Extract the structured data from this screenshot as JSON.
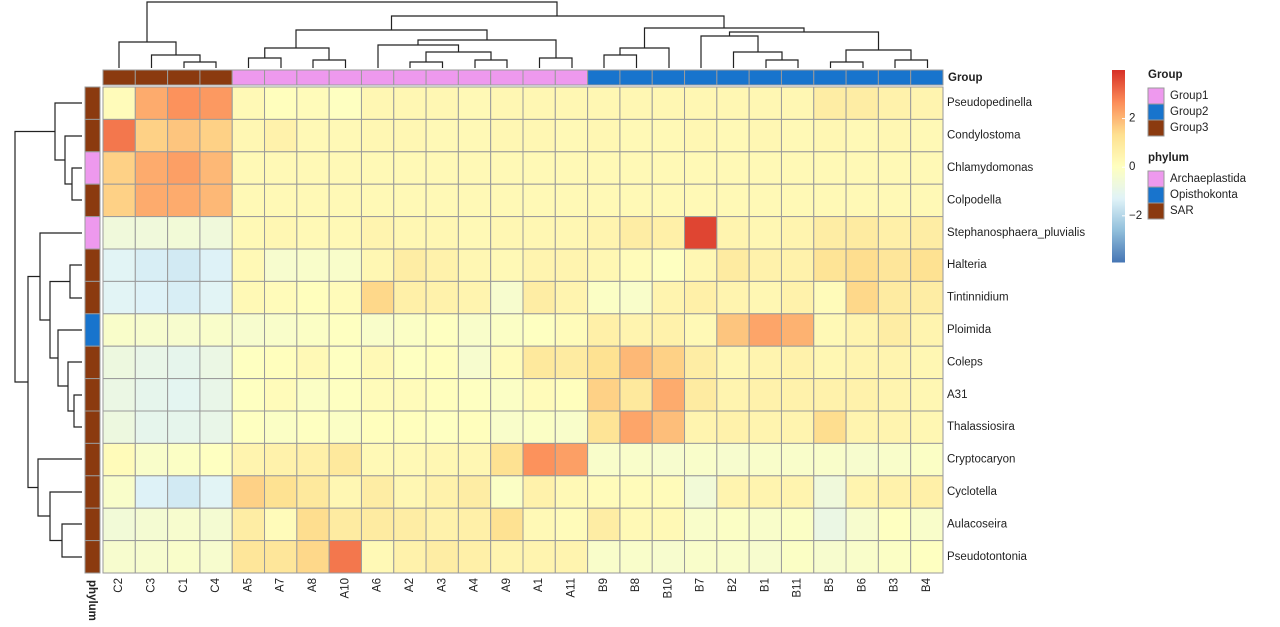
{
  "chart_data": {
    "type": "heatmap",
    "columns": [
      "C2",
      "C3",
      "C1",
      "C4",
      "A5",
      "A7",
      "A8",
      "A10",
      "A6",
      "A2",
      "A3",
      "A4",
      "A9",
      "A1",
      "A11",
      "B9",
      "B8",
      "B10",
      "B7",
      "B2",
      "B1",
      "B11",
      "B5",
      "B6",
      "B3",
      "B4"
    ],
    "rows": [
      "Pseudopedinella",
      "Condylostoma",
      "Chlamydomonas",
      "Colpodella",
      "Stephanosphaera_pluvialis",
      "Halteria",
      "Tintinnidium",
      "Ploimida",
      "Coleps",
      "A31",
      "Thalassiosira",
      "Cryptocaryon",
      "Cyclotella",
      "Aulacoseira",
      "Pseudotontonia"
    ],
    "values": [
      [
        0.2,
        2.2,
        2.6,
        2.5,
        0.3,
        0.1,
        0.2,
        0,
        0.4,
        0.4,
        0.4,
        0.3,
        0.4,
        0.4,
        0.4,
        0.4,
        0.4,
        0.4,
        0.4,
        0.4,
        0.4,
        0.4,
        0.8,
        0.8,
        0.6,
        0.5
      ],
      [
        3.0,
        1.6,
        1.8,
        1.6,
        0.4,
        0.6,
        0.3,
        0.3,
        0.4,
        0.4,
        0.3,
        0.3,
        0.4,
        0.4,
        0.3,
        0.4,
        0.3,
        0.3,
        0.4,
        0.3,
        0.4,
        0.3,
        0.4,
        0.3,
        0.4,
        0.3
      ],
      [
        1.6,
        2.2,
        2.4,
        2.0,
        0.3,
        0.3,
        0.3,
        0.3,
        0.3,
        0.3,
        0.3,
        0.3,
        0.3,
        0.3,
        0.3,
        0.3,
        0.3,
        0.3,
        0.3,
        0.3,
        0.3,
        0.3,
        0.3,
        0.3,
        0.3,
        0.3
      ],
      [
        1.6,
        2.2,
        2.2,
        2.0,
        0.3,
        0.3,
        0.3,
        0.3,
        0.3,
        0.3,
        0.3,
        0.3,
        0.3,
        0.3,
        0.3,
        0.3,
        0.3,
        0.3,
        0.3,
        0.3,
        0.3,
        0.3,
        0.3,
        0.3,
        0.3,
        0.3
      ],
      [
        -0.6,
        -0.6,
        -0.5,
        -0.6,
        0.3,
        0.4,
        0.3,
        0.3,
        0.5,
        0.4,
        0.4,
        0.3,
        0.4,
        0.4,
        0.4,
        0.5,
        0.8,
        0.7,
        3.7,
        0.5,
        0.4,
        0.5,
        0.8,
        0.9,
        0.7,
        0.8
      ],
      [
        -1.2,
        -1.4,
        -1.5,
        -1.3,
        0.3,
        -0.3,
        -0.2,
        -0.2,
        0.4,
        0.8,
        0.6,
        0.4,
        0.3,
        0.5,
        0.5,
        0.4,
        0.2,
        0,
        0.4,
        0.9,
        0.6,
        0.6,
        1.2,
        1.4,
        1.1,
        1.3
      ],
      [
        -1.2,
        -1.3,
        -1.4,
        -1.2,
        0.3,
        0.2,
        0.1,
        0.2,
        1.5,
        0.7,
        0.6,
        0.5,
        -0.3,
        0.8,
        0.5,
        -0.1,
        -0.2,
        0.5,
        0.7,
        0.5,
        0.4,
        0.6,
        0.2,
        1.5,
        0.9,
        0.8
      ],
      [
        -0.2,
        -0.3,
        -0.3,
        -0.2,
        -0.3,
        -0.2,
        -0.1,
        0,
        -0.2,
        -0.1,
        0,
        -0.2,
        -0.1,
        0,
        0.2,
        0.7,
        0.5,
        0.6,
        0.3,
        1.8,
        2.3,
        2.1,
        0.3,
        0.5,
        0.8,
        0.5
      ],
      [
        -0.7,
        -0.9,
        -1.0,
        -0.8,
        0,
        0.1,
        0.3,
        0,
        0.3,
        0,
        0.1,
        -0.3,
        0.2,
        1.0,
        0.9,
        1.3,
        2.0,
        1.6,
        0.8,
        0.4,
        0.5,
        0.6,
        0.4,
        0.5,
        0.5,
        0.4
      ],
      [
        -0.8,
        -1.0,
        -1.1,
        -0.9,
        0,
        0.2,
        -0.1,
        0,
        0.2,
        0.2,
        0.1,
        0,
        -0.1,
        0.2,
        0.1,
        1.6,
        1.0,
        2.2,
        0.9,
        0.5,
        0.6,
        0.6,
        0.6,
        0.6,
        0.5,
        0.4
      ],
      [
        -0.7,
        -1.0,
        -1.0,
        -0.9,
        0,
        -0.1,
        0,
        -0.1,
        0.1,
        0.1,
        0,
        0.1,
        -0.2,
        -0.1,
        -0.2,
        1.2,
        2.3,
        1.9,
        0.5,
        0.6,
        0.5,
        0.5,
        1.4,
        0.5,
        0.5,
        0.4
      ],
      [
        0.2,
        -0.2,
        -0.1,
        0,
        0.5,
        0.6,
        0.7,
        1.0,
        0.3,
        0.3,
        0.4,
        0.4,
        1.3,
        2.6,
        2.4,
        -0.2,
        -0.2,
        -0.3,
        -0.2,
        -0.3,
        -0.2,
        -0.2,
        -0.2,
        -0.3,
        -0.2,
        -0.1
      ],
      [
        -0.2,
        -1.3,
        -1.5,
        -1.2,
        1.6,
        1.3,
        1.0,
        0.4,
        0.8,
        0.4,
        0.6,
        0.8,
        -0.1,
        0.6,
        0.3,
        0.2,
        0.2,
        0.2,
        -0.5,
        0.5,
        0.5,
        0.5,
        -0.6,
        0.5,
        0.6,
        0.7
      ],
      [
        -0.5,
        -0.4,
        -0.3,
        -0.4,
        0.8,
        0.2,
        1.4,
        0.9,
        0.9,
        0.8,
        0.6,
        0.7,
        1.3,
        0.3,
        0.2,
        0.8,
        0.3,
        0.3,
        -0.2,
        -0.1,
        -0.2,
        -0.1,
        -0.8,
        -0.3,
        0,
        -0.2
      ],
      [
        -0.3,
        -0.3,
        -0.2,
        -0.3,
        1.1,
        1.1,
        1.5,
        3.0,
        0.3,
        0.6,
        0.8,
        0.7,
        0.5,
        0.5,
        0.5,
        -0.2,
        -0.2,
        -0.3,
        -0.2,
        -0.2,
        -0.3,
        -0.1,
        -0.3,
        -0.2,
        -0.1,
        0
      ]
    ],
    "zlim": [
      -3.9,
      4
    ],
    "zticks": [
      {
        "value": -2,
        "label": "−2"
      },
      0,
      2
    ],
    "colors": [
      "#4575B4",
      "#91BFDB",
      "#E0F3F8",
      "#FFFFBF",
      "#FEE090",
      "#FC8D59",
      "#D73027"
    ],
    "column_annotation": {
      "title": "Group",
      "levels": [
        "Group1",
        "Group2",
        "Group3"
      ],
      "colors": [
        "#EE99EE",
        "#1874CD",
        "#8B3A0F"
      ],
      "values": [
        "Group3",
        "Group3",
        "Group3",
        "Group3",
        "Group1",
        "Group1",
        "Group1",
        "Group1",
        "Group1",
        "Group1",
        "Group1",
        "Group1",
        "Group1",
        "Group1",
        "Group1",
        "Group2",
        "Group2",
        "Group2",
        "Group2",
        "Group2",
        "Group2",
        "Group2",
        "Group2",
        "Group2",
        "Group2",
        "Group2"
      ]
    },
    "row_annotation": {
      "title": "phylum",
      "levels": [
        "Archaeplastida",
        "Opisthokonta",
        "SAR"
      ],
      "colors": [
        "#EE99EE",
        "#1874CD",
        "#8B3A0F"
      ],
      "values": [
        "SAR",
        "SAR",
        "Archaeplastida",
        "SAR",
        "Archaeplastida",
        "SAR",
        "SAR",
        "Opisthokonta",
        "SAR",
        "SAR",
        "SAR",
        "SAR",
        "SAR",
        "SAR",
        "SAR"
      ]
    }
  }
}
